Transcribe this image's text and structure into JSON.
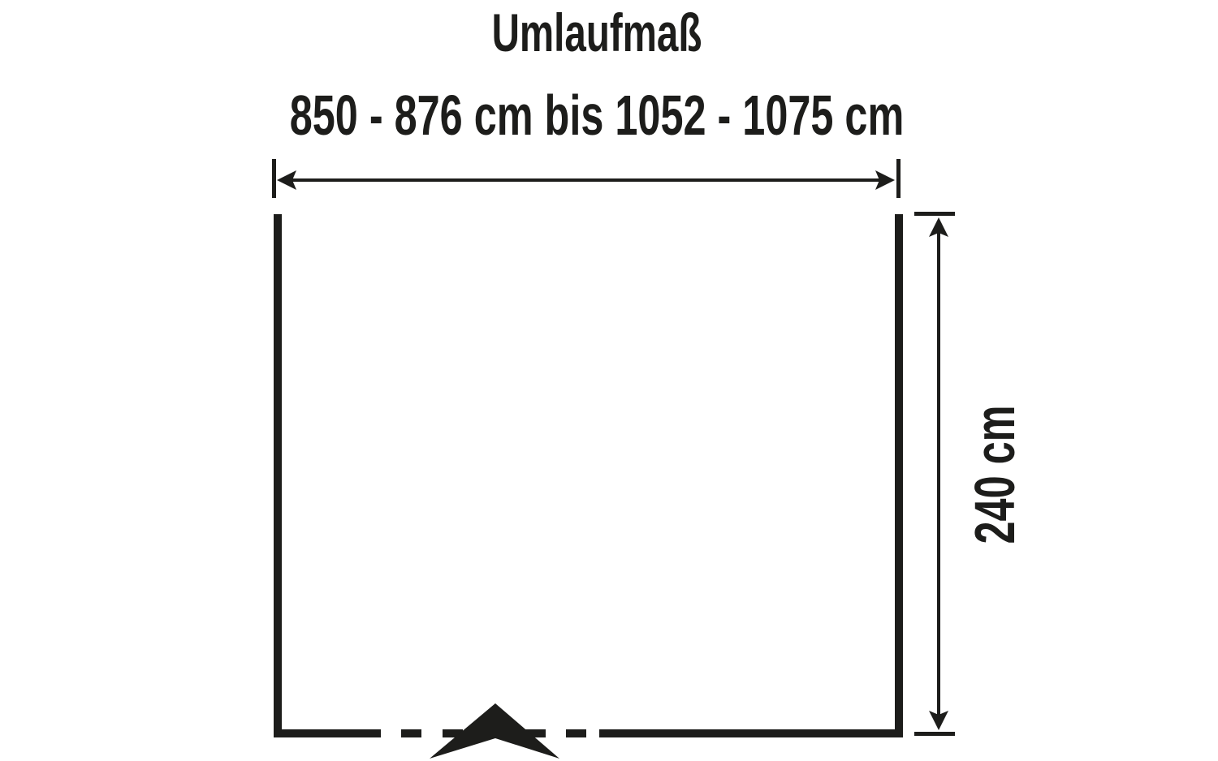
{
  "title": "Umlaufmaß",
  "circumference_range": "850 - 876 cm bis 1052 - 1075 cm",
  "height_label": "240 cm",
  "colors": {
    "ink": "#1d1d1b",
    "background": "#ffffff"
  },
  "icons": [
    "entrance-arrow-icon"
  ]
}
